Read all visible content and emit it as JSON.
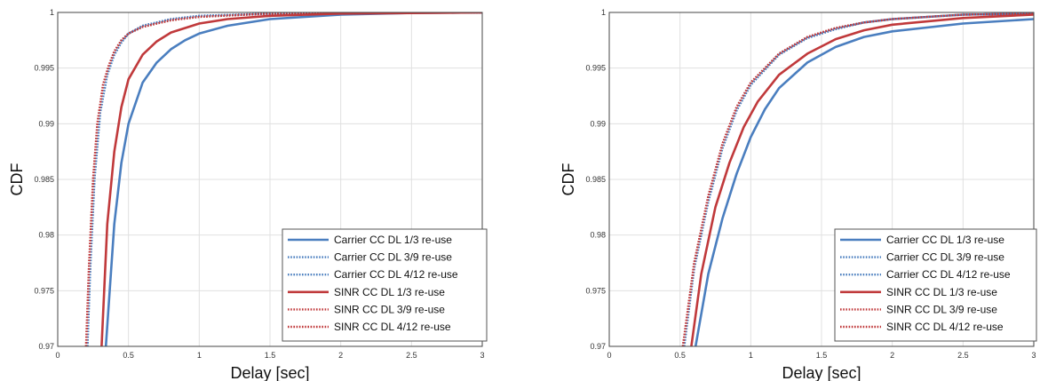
{
  "colors": {
    "carrier": "#4a7ebf",
    "sinr": "#c0393b",
    "grid": "#e0e0e0"
  },
  "chart_data": [
    {
      "type": "line",
      "xlabel": "Delay [sec]",
      "ylabel": "CDF",
      "xlim": [
        0,
        3
      ],
      "ylim": [
        0.97,
        1.0
      ],
      "xticks": [
        "0",
        "0.5",
        "1",
        "1.5",
        "2",
        "2.5",
        "3"
      ],
      "yticks": [
        "0.97",
        "0.975",
        "0.98",
        "0.985",
        "0.99",
        "0.995",
        "1"
      ],
      "grid": true,
      "legend": "bottom-right",
      "series": [
        {
          "name": "Carrier CC DL 1/3 re-use",
          "style": "solid",
          "color": "carrier",
          "x": [
            0.34,
            0.4,
            0.45,
            0.5,
            0.6,
            0.7,
            0.8,
            0.9,
            1.0,
            1.2,
            1.5,
            2.0,
            2.5,
            3.0
          ],
          "y": [
            0.97,
            0.981,
            0.9865,
            0.99,
            0.9937,
            0.9955,
            0.9967,
            0.9975,
            0.9981,
            0.9988,
            0.9994,
            0.9998,
            0.99995,
            1.0
          ]
        },
        {
          "name": "Carrier CC DL 3/9 re-use",
          "style": "dotted",
          "color": "carrier",
          "x": [
            0.21,
            0.23,
            0.26,
            0.3,
            0.35,
            0.4,
            0.45,
            0.5,
            0.6,
            0.8,
            1.0,
            1.5,
            2.0,
            3.0
          ],
          "y": [
            0.97,
            0.977,
            0.985,
            0.991,
            0.9944,
            0.9962,
            0.9973,
            0.9981,
            0.9988,
            0.9994,
            0.9997,
            0.9999,
            1.0,
            1.0
          ]
        },
        {
          "name": "Carrier CC DL 4/12 re-use",
          "style": "dotted",
          "color": "carrier",
          "x": [
            0.21,
            0.23,
            0.26,
            0.3,
            0.35,
            0.4,
            0.45,
            0.5,
            0.6,
            0.8,
            1.0,
            1.5,
            2.0,
            3.0
          ],
          "y": [
            0.97,
            0.977,
            0.985,
            0.991,
            0.9944,
            0.9962,
            0.9973,
            0.9981,
            0.9988,
            0.9994,
            0.9997,
            0.9999,
            1.0,
            1.0
          ]
        },
        {
          "name": "SINR CC DL 1/3 re-use",
          "style": "solid",
          "color": "sinr",
          "x": [
            0.31,
            0.35,
            0.4,
            0.45,
            0.5,
            0.6,
            0.7,
            0.8,
            1.0,
            1.2,
            1.5,
            2.0,
            3.0
          ],
          "y": [
            0.97,
            0.981,
            0.9875,
            0.9915,
            0.994,
            0.9962,
            0.9974,
            0.9982,
            0.999,
            0.9994,
            0.9997,
            0.9999,
            1.0
          ]
        },
        {
          "name": "SINR CC DL 3/9 re-use",
          "style": "dotted",
          "color": "sinr",
          "x": [
            0.2,
            0.22,
            0.25,
            0.28,
            0.32,
            0.36,
            0.4,
            0.45,
            0.5,
            0.6,
            0.8,
            1.0,
            1.5,
            2.0,
            3.0
          ],
          "y": [
            0.97,
            0.977,
            0.985,
            0.99,
            0.9935,
            0.9952,
            0.9965,
            0.9975,
            0.9981,
            0.9987,
            0.9993,
            0.9996,
            0.9999,
            1.0,
            1.0
          ]
        },
        {
          "name": "SINR CC DL 4/12 re-use",
          "style": "dotted",
          "color": "sinr",
          "x": [
            0.2,
            0.22,
            0.25,
            0.28,
            0.32,
            0.36,
            0.4,
            0.45,
            0.5,
            0.6,
            0.8,
            1.0,
            1.5,
            2.0,
            3.0
          ],
          "y": [
            0.97,
            0.977,
            0.985,
            0.99,
            0.9935,
            0.9952,
            0.9965,
            0.9975,
            0.9981,
            0.9987,
            0.9993,
            0.9996,
            0.9999,
            1.0,
            1.0
          ]
        }
      ]
    },
    {
      "type": "line",
      "xlabel": "Delay [sec]",
      "ylabel": "CDF",
      "xlim": [
        0,
        3
      ],
      "ylim": [
        0.97,
        1.0
      ],
      "xticks": [
        "0",
        "0.5",
        "1",
        "1.5",
        "2",
        "2.5",
        "3"
      ],
      "yticks": [
        "0.97",
        "0.975",
        "0.98",
        "0.985",
        "0.99",
        "0.995",
        "1"
      ],
      "grid": true,
      "legend": "bottom-right",
      "series": [
        {
          "name": "Carrier CC DL 1/3 re-use",
          "style": "solid",
          "color": "carrier",
          "x": [
            0.61,
            0.7,
            0.8,
            0.9,
            1.0,
            1.1,
            1.2,
            1.4,
            1.6,
            1.8,
            2.0,
            2.5,
            3.0
          ],
          "y": [
            0.97,
            0.9765,
            0.9815,
            0.9855,
            0.9888,
            0.9913,
            0.9932,
            0.9955,
            0.9969,
            0.9978,
            0.9983,
            0.999,
            0.9994
          ]
        },
        {
          "name": "Carrier CC DL 3/9 re-use",
          "style": "dotted",
          "color": "carrier",
          "x": [
            0.53,
            0.6,
            0.7,
            0.8,
            0.9,
            1.0,
            1.2,
            1.4,
            1.6,
            1.8,
            2.0,
            2.5,
            3.0
          ],
          "y": [
            0.97,
            0.977,
            0.983,
            0.9878,
            0.9912,
            0.9935,
            0.9962,
            0.9977,
            0.9985,
            0.9991,
            0.9994,
            0.9998,
            0.9999
          ]
        },
        {
          "name": "Carrier CC DL 4/12 re-use",
          "style": "dotted",
          "color": "carrier",
          "x": [
            0.53,
            0.6,
            0.7,
            0.8,
            0.9,
            1.0,
            1.2,
            1.4,
            1.6,
            1.8,
            2.0,
            2.5,
            3.0
          ],
          "y": [
            0.97,
            0.977,
            0.983,
            0.9878,
            0.9912,
            0.9935,
            0.9962,
            0.9977,
            0.9985,
            0.9991,
            0.9994,
            0.9998,
            0.9999
          ]
        },
        {
          "name": "SINR CC DL 1/3 re-use",
          "style": "solid",
          "color": "sinr",
          "x": [
            0.58,
            0.65,
            0.75,
            0.85,
            0.95,
            1.05,
            1.2,
            1.4,
            1.6,
            1.8,
            2.0,
            2.5,
            3.0
          ],
          "y": [
            0.97,
            0.9765,
            0.9825,
            0.9865,
            0.9897,
            0.992,
            0.9944,
            0.9963,
            0.9976,
            0.9984,
            0.9989,
            0.9995,
            0.9998
          ]
        },
        {
          "name": "SINR CC DL 3/9 re-use",
          "style": "dotted",
          "color": "sinr",
          "x": [
            0.52,
            0.6,
            0.7,
            0.8,
            0.9,
            1.0,
            1.2,
            1.4,
            1.6,
            1.8,
            2.0,
            2.5,
            3.0
          ],
          "y": [
            0.97,
            0.9775,
            0.9835,
            0.9882,
            0.9915,
            0.9937,
            0.9963,
            0.9978,
            0.9986,
            0.9991,
            0.9994,
            0.9998,
            0.9999
          ]
        },
        {
          "name": "SINR CC DL 4/12 re-use",
          "style": "dotted",
          "color": "sinr",
          "x": [
            0.52,
            0.6,
            0.7,
            0.8,
            0.9,
            1.0,
            1.2,
            1.4,
            1.6,
            1.8,
            2.0,
            2.5,
            3.0
          ],
          "y": [
            0.97,
            0.9775,
            0.9835,
            0.9882,
            0.9915,
            0.9937,
            0.9963,
            0.9978,
            0.9986,
            0.9991,
            0.9994,
            0.9998,
            0.9999
          ]
        }
      ]
    }
  ]
}
